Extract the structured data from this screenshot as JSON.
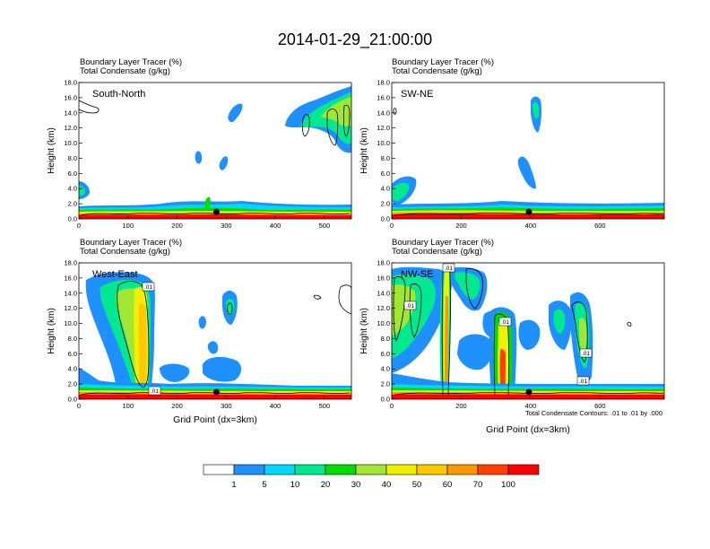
{
  "title": "2014-01-29_21:00:00",
  "chart_data": [
    {
      "type": "heatmap",
      "title_line1": "Boundary Layer Tracer   (%)",
      "title_line2": "Total Condensate   (g/kg)",
      "label": "South-North",
      "ylabel": "Height (km)",
      "xlabel": "",
      "xlim": [
        0,
        555
      ],
      "ylim": [
        0,
        18
      ],
      "xticks": [
        "0",
        "100",
        "200",
        "300",
        "400",
        "500"
      ],
      "yticks": [
        "0.0",
        "2.0",
        "4.0",
        "6.0",
        "8.0",
        "10.0",
        "12.0",
        "14.0",
        "16.0",
        "18.0"
      ],
      "marker_x": 280
    },
    {
      "type": "heatmap",
      "title_line1": "Boundary Layer Tracer   (%)",
      "title_line2": "Total Condensate   (g/kg)",
      "label": "SW-NE",
      "ylabel": "Height (km)",
      "xlabel": "",
      "xlim": [
        0,
        785
      ],
      "ylim": [
        0,
        18
      ],
      "xticks": [
        "0",
        "200",
        "400",
        "600"
      ],
      "yticks": [
        "0.0",
        "2.0",
        "4.0",
        "6.0",
        "8.0",
        "10.0",
        "12.0",
        "14.0",
        "16.0",
        "18.0"
      ],
      "marker_x": 395
    },
    {
      "type": "heatmap",
      "title_line1": "Boundary Layer Tracer   (%)",
      "title_line2": "Total Condensate   (g/kg)",
      "label": "West-East",
      "ylabel": "Height (km)",
      "xlabel": "Grid Point (dx=3km)",
      "xlim": [
        0,
        555
      ],
      "ylim": [
        0,
        18
      ],
      "xticks": [
        "0",
        "100",
        "200",
        "300",
        "400",
        "500"
      ],
      "yticks": [
        "0.0",
        "2.0",
        "4.0",
        "6.0",
        "8.0",
        "10.0",
        "12.0",
        "14.0",
        "16.0",
        "18.0"
      ],
      "marker_x": 280,
      "contour_labels": [
        ".01",
        ".01"
      ]
    },
    {
      "type": "heatmap",
      "title_line1": "Boundary Layer Tracer   (%)",
      "title_line2": "Total Condensate   (g/kg)",
      "label": "NW-SE",
      "ylabel": "Height (km)",
      "xlabel": "Grid Point (dx=3km)",
      "xlim": [
        0,
        785
      ],
      "ylim": [
        0,
        18
      ],
      "xticks": [
        "0",
        "200",
        "400",
        "600"
      ],
      "yticks": [
        "0.0",
        "2.0",
        "4.0",
        "6.0",
        "8.0",
        "10.0",
        "12.0",
        "14.0",
        "16.0",
        "18.0"
      ],
      "marker_x": 395,
      "contour_labels": [
        ".01",
        ".01",
        ".01",
        ".01",
        ".01"
      ],
      "contour_note": "Total Condensate Contours: .01 to .01 by .000"
    }
  ],
  "colorbar": {
    "labels": [
      "1",
      "5",
      "10",
      "20",
      "30",
      "40",
      "50",
      "60",
      "70",
      "100"
    ],
    "colors": [
      "#ffffff",
      "#1e90ff",
      "#00d8ff",
      "#00e890",
      "#00dc00",
      "#a0e632",
      "#f0f000",
      "#ffc800",
      "#ff9600",
      "#ff4000",
      "#ff0000"
    ]
  }
}
